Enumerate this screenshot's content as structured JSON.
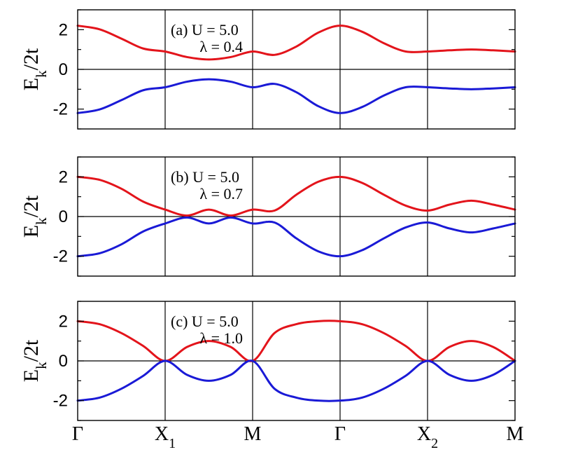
{
  "chart_data": {
    "type": "line",
    "k_path": [
      "Γ",
      "X1",
      "M",
      "Γ",
      "X2",
      "M"
    ],
    "x_ticks": [
      {
        "main": "Γ",
        "sub": ""
      },
      {
        "main": "X",
        "sub": "1"
      },
      {
        "main": "M",
        "sub": ""
      },
      {
        "main": "Γ",
        "sub": ""
      },
      {
        "main": "X",
        "sub": "2"
      },
      {
        "main": "M",
        "sub": ""
      }
    ],
    "ylabel": {
      "main": "E",
      "sub": "k",
      "rest": "/2t"
    },
    "ylim": [
      -3,
      3
    ],
    "yticks": [
      -2,
      0,
      2
    ],
    "ytick_labels": [
      "-2",
      "0",
      "2"
    ],
    "zero_line": true,
    "colors": {
      "upper": "#e3141b",
      "lower": "#1a1ad6"
    },
    "panels": [
      {
        "label": "(a)",
        "U_text": "U = 5.0",
        "lambda_text": "λ = 0.4",
        "lambda": 0.4,
        "series": [
          {
            "band": "upper",
            "x": [
              0,
              0.25,
              0.5,
              0.75,
              1,
              1.25,
              1.5,
              1.75,
              2,
              2.25,
              2.5,
              2.75,
              3,
              3.25,
              3.5,
              3.75,
              4,
              4.25,
              4.5,
              4.75,
              5
            ],
            "y": [
              2.2,
              2.02,
              1.55,
              1.05,
              0.9,
              0.62,
              0.5,
              0.62,
              0.9,
              0.73,
              1.15,
              1.85,
              2.2,
              1.9,
              1.32,
              0.9,
              0.9,
              0.96,
              1.0,
              0.96,
              0.9
            ]
          },
          {
            "band": "lower",
            "x": [
              0,
              0.25,
              0.5,
              0.75,
              1,
              1.25,
              1.5,
              1.75,
              2,
              2.25,
              2.5,
              2.75,
              3,
              3.25,
              3.5,
              3.75,
              4,
              4.25,
              4.5,
              4.75,
              5
            ],
            "y": [
              -2.2,
              -2.02,
              -1.55,
              -1.05,
              -0.9,
              -0.62,
              -0.5,
              -0.62,
              -0.9,
              -0.73,
              -1.15,
              -1.85,
              -2.2,
              -1.9,
              -1.32,
              -0.9,
              -0.9,
              -0.96,
              -1.0,
              -0.96,
              -0.9
            ]
          }
        ]
      },
      {
        "label": "(b)",
        "U_text": "U = 5.0",
        "lambda_text": "λ = 0.7",
        "lambda": 0.7,
        "series": [
          {
            "band": "upper",
            "x": [
              0,
              0.25,
              0.5,
              0.75,
              1,
              1.25,
              1.5,
              1.75,
              2,
              2.25,
              2.5,
              2.75,
              3,
              3.25,
              3.5,
              3.75,
              4,
              4.25,
              4.5,
              4.75,
              5
            ],
            "y": [
              2.0,
              1.85,
              1.4,
              0.75,
              0.35,
              0.05,
              0.35,
              0.05,
              0.35,
              0.3,
              1.1,
              1.75,
              2.0,
              1.7,
              1.1,
              0.55,
              0.3,
              0.6,
              0.8,
              0.6,
              0.35
            ]
          },
          {
            "band": "lower",
            "x": [
              0,
              0.25,
              0.5,
              0.75,
              1,
              1.25,
              1.5,
              1.75,
              2,
              2.25,
              2.5,
              2.75,
              3,
              3.25,
              3.5,
              3.75,
              4,
              4.25,
              4.5,
              4.75,
              5
            ],
            "y": [
              -2.0,
              -1.85,
              -1.4,
              -0.75,
              -0.35,
              -0.05,
              -0.35,
              -0.05,
              -0.35,
              -0.3,
              -1.1,
              -1.75,
              -2.0,
              -1.7,
              -1.1,
              -0.55,
              -0.3,
              -0.6,
              -0.8,
              -0.6,
              -0.35
            ]
          }
        ]
      },
      {
        "label": "(c)",
        "U_text": "U = 5.0",
        "lambda_text": "λ = 1.0",
        "lambda": 1.0,
        "series": [
          {
            "band": "upper",
            "x": [
              0,
              0.25,
              0.5,
              0.75,
              1,
              1.25,
              1.5,
              1.75,
              2,
              2.25,
              2.5,
              2.75,
              3,
              3.25,
              3.5,
              3.75,
              4,
              4.25,
              4.5,
              4.75,
              5
            ],
            "y": [
              2.0,
              1.85,
              1.4,
              0.75,
              0.0,
              0.7,
              1.0,
              0.7,
              0.0,
              1.4,
              1.85,
              2.0,
              2.0,
              1.85,
              1.4,
              0.75,
              0.0,
              0.7,
              1.0,
              0.7,
              0.0
            ]
          },
          {
            "band": "lower",
            "x": [
              0,
              0.25,
              0.5,
              0.75,
              1,
              1.25,
              1.5,
              1.75,
              2,
              2.25,
              2.5,
              2.75,
              3,
              3.25,
              3.5,
              3.75,
              4,
              4.25,
              4.5,
              4.75,
              5
            ],
            "y": [
              -2.0,
              -1.85,
              -1.4,
              -0.75,
              0.0,
              -0.7,
              -1.0,
              -0.7,
              0.0,
              -1.4,
              -1.85,
              -2.0,
              -2.0,
              -1.85,
              -1.4,
              -0.75,
              0.0,
              -0.7,
              -1.0,
              -0.7,
              0.0
            ]
          }
        ]
      }
    ]
  }
}
